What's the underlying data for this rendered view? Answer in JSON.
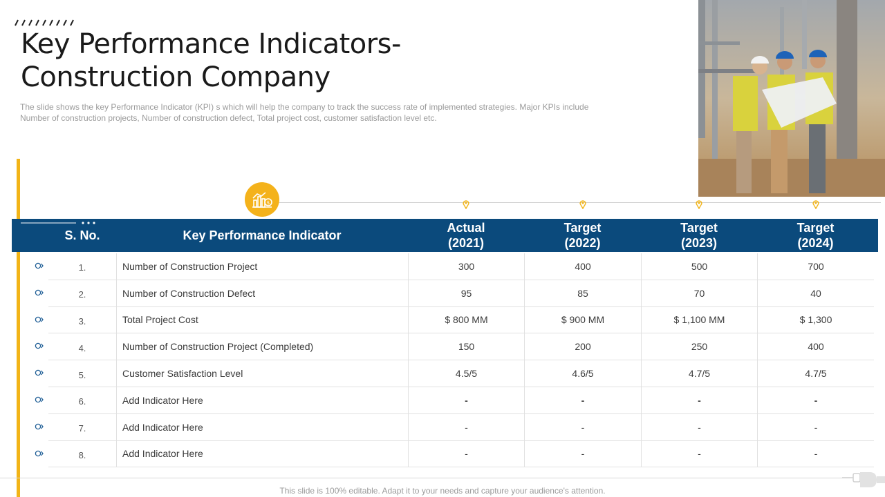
{
  "slide": {
    "title_line1": "Key Performance Indicators-",
    "title_line2": "Construction Company",
    "subtitle": "The slide shows the key Performance Indicator (KPI) s which will help the company to track the success rate of implemented strategies. Major KPIs include Number of construction projects, Number of construction defect, Total project cost, customer satisfaction level etc.",
    "footer": "This slide is 100% editable. Adapt it to your needs and capture your audience's attention."
  },
  "colors": {
    "accent": "#f2b417",
    "header": "#0b4a7c",
    "bullet": "#1f5e96"
  },
  "table": {
    "headers": {
      "no": "S. No.",
      "kpi": "Key Performance Indicator",
      "col1_line1": "Actual",
      "col1_line2": "(2021)",
      "col2_line1": "Target",
      "col2_line2": "(2022)",
      "col3_line1": "Target",
      "col3_line2": "(2023)",
      "col4_line1": "Target",
      "col4_line2": "(2024)"
    },
    "rows": [
      {
        "no": "1.",
        "kpi": "Number of Construction Project",
        "v1": "300",
        "v2": "400",
        "v3": "500",
        "v4": "700"
      },
      {
        "no": "2.",
        "kpi": "Number of Construction Defect",
        "v1": "95",
        "v2": "85",
        "v3": "70",
        "v4": "40"
      },
      {
        "no": "3.",
        "kpi": "Total Project Cost",
        "v1": "$ 800 MM",
        "v2": "$ 900 MM",
        "v3": "$ 1,100 MM",
        "v4": "$ 1,300"
      },
      {
        "no": "4.",
        "kpi": "Number of Construction Project (Completed)",
        "v1": "150",
        "v2": "200",
        "v3": "250",
        "v4": "400"
      },
      {
        "no": "5.",
        "kpi": "Customer Satisfaction Level",
        "v1": "4.5/5",
        "v2": "4.6/5",
        "v3": "4.7/5",
        "v4": "4.7/5"
      },
      {
        "no": "6.",
        "kpi": "Add Indicator Here",
        "v1": "-",
        "v2": "-",
        "v3": "-",
        "v4": "-"
      },
      {
        "no": "7.",
        "kpi": "Add Indicator Here",
        "v1": "-",
        "v2": "-",
        "v3": "-",
        "v4": "-"
      },
      {
        "no": "8.",
        "kpi": "Add Indicator Here",
        "v1": "-",
        "v2": "-",
        "v3": "-",
        "v4": "-"
      }
    ]
  },
  "icons": {
    "badge": "chart-dollar-icon",
    "pins": "location-pin-icon",
    "bullets": "chevron-circle-icon",
    "photo": "construction-workers-photo"
  }
}
